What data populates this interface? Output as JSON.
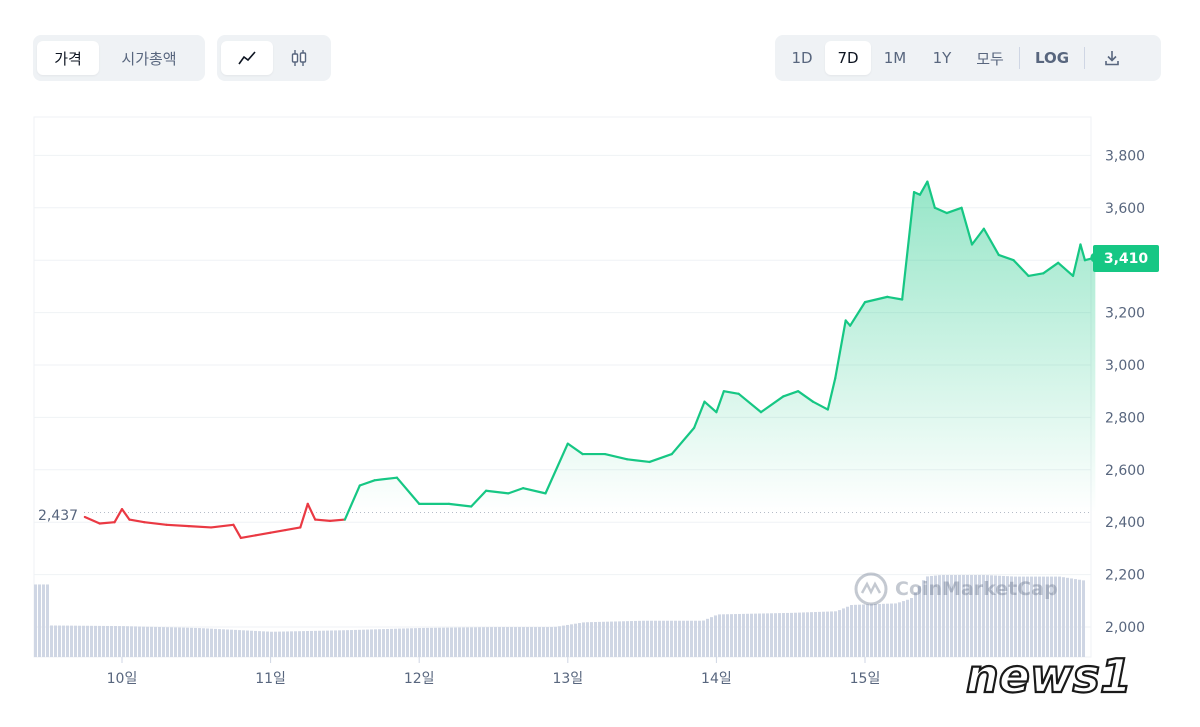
{
  "toolbar": {
    "view_tabs": [
      {
        "label": "가격",
        "active": true
      },
      {
        "label": "시가총액",
        "active": false
      }
    ],
    "chart_type_icons": [
      {
        "icon": "line-chart-icon",
        "active": true
      },
      {
        "icon": "candlestick-icon",
        "active": false
      }
    ],
    "range_tabs": [
      {
        "label": "1D",
        "active": false
      },
      {
        "label": "7D",
        "active": true
      },
      {
        "label": "1M",
        "active": false
      },
      {
        "label": "1Y",
        "active": false
      },
      {
        "label": "모두",
        "active": false
      }
    ],
    "log_label": "LOG",
    "download_icon": "download-icon"
  },
  "current_price_label": "3,410",
  "reference_label": "2,437",
  "watermark_text": "CoinMarketCap",
  "news_logo_text": "news1",
  "colors": {
    "up": "#16c784",
    "down": "#ea3943",
    "volume": "#cfd6e4",
    "grid": "#eff2f5"
  },
  "chart_data": {
    "type": "line",
    "title": "",
    "xlabel": "",
    "ylabel": "",
    "x_ticks": [
      "10일",
      "11일",
      "12일",
      "13일",
      "14일",
      "15일"
    ],
    "y_ticks": [
      "2,000",
      "2,200",
      "2,400",
      "2,600",
      "2,800",
      "3,000",
      "3,200",
      "3,400",
      "3,600",
      "3,800"
    ],
    "ylim": [
      1900,
      3950
    ],
    "xlim": [
      9.5,
      16.6
    ],
    "reference_value": 2437,
    "current_value": 3410,
    "grid": true,
    "series": [
      {
        "x": [
          9.75,
          9.85,
          9.95,
          10.0,
          10.05,
          10.15,
          10.3,
          10.45,
          10.6,
          10.75,
          10.8,
          10.9,
          11.0,
          11.1,
          11.2,
          11.25,
          11.3,
          11.4,
          11.5,
          11.6,
          11.7,
          11.85,
          12.0,
          12.2,
          12.35,
          12.45,
          12.6,
          12.7,
          12.85,
          13.0,
          13.1,
          13.25,
          13.4,
          13.55,
          13.7,
          13.85,
          13.92,
          14.0,
          14.05,
          14.15,
          14.3,
          14.45,
          14.55,
          14.65,
          14.75,
          14.8,
          14.87,
          14.9,
          15.0,
          15.15,
          15.25,
          15.33,
          15.37,
          15.42,
          15.47,
          15.55,
          15.65,
          15.72,
          15.8,
          15.9,
          16.0,
          16.1,
          16.2,
          16.3,
          16.4,
          16.45,
          16.48,
          16.55
        ],
        "values": [
          2420,
          2395,
          2400,
          2450,
          2410,
          2400,
          2390,
          2385,
          2380,
          2390,
          2340,
          2350,
          2360,
          2370,
          2380,
          2470,
          2410,
          2405,
          2410,
          2540,
          2560,
          2570,
          2470,
          2470,
          2460,
          2520,
          2510,
          2530,
          2510,
          2700,
          2660,
          2660,
          2640,
          2630,
          2660,
          2760,
          2860,
          2820,
          2900,
          2890,
          2820,
          2880,
          2900,
          2860,
          2830,
          2950,
          3170,
          3150,
          3240,
          3260,
          3250,
          3660,
          3650,
          3700,
          3600,
          3580,
          3600,
          3460,
          3520,
          3420,
          3400,
          3340,
          3350,
          3390,
          3340,
          3460,
          3400,
          3410
        ]
      }
    ],
    "volume_series": {
      "x": [
        9.5,
        10.0,
        10.5,
        11.0,
        11.5,
        12.0,
        12.5,
        12.9,
        13.1,
        13.5,
        13.9,
        14.0,
        14.5,
        14.8,
        14.9,
        15.2,
        15.3,
        15.4,
        15.5,
        15.8,
        16.0,
        16.3,
        16.5,
        16.55
      ],
      "values": [
        100,
        98,
        92,
        80,
        85,
        92,
        95,
        95,
        110,
        115,
        115,
        135,
        140,
        145,
        165,
        170,
        185,
        255,
        260,
        260,
        255,
        255,
        240,
        230
      ]
    }
  }
}
